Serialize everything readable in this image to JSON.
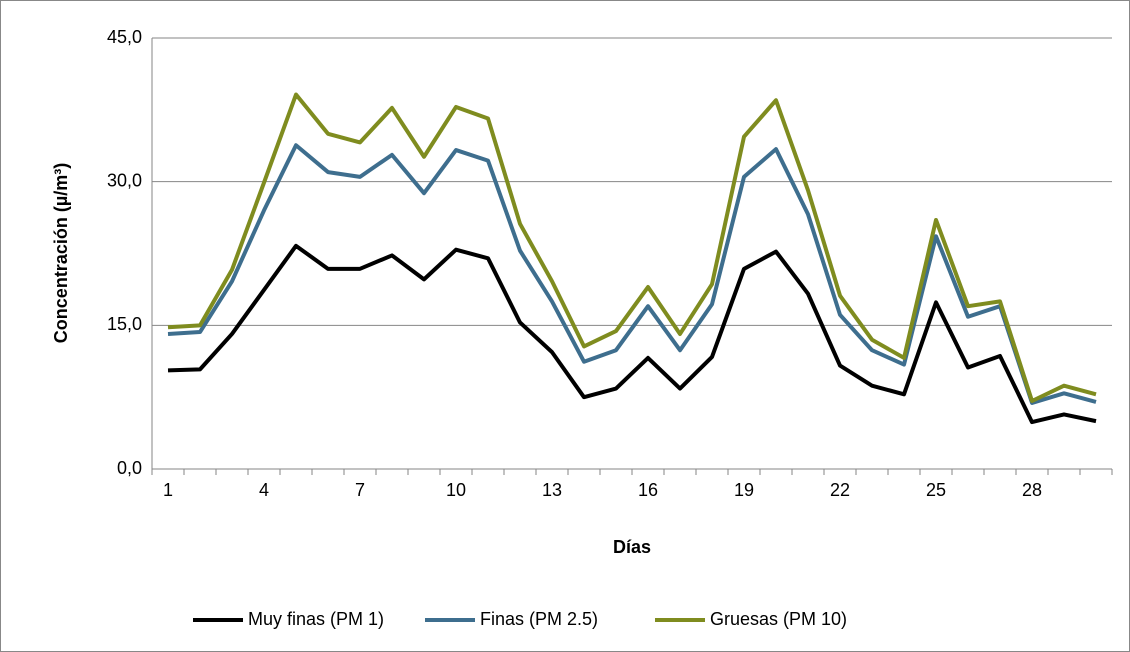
{
  "chart_data": {
    "type": "line",
    "x_label": "Días",
    "y_label": "Concentración (µ/m³)",
    "categories": [
      1,
      null,
      null,
      4,
      null,
      null,
      7,
      null,
      null,
      10,
      null,
      null,
      13,
      null,
      null,
      16,
      null,
      null,
      19,
      null,
      null,
      22,
      null,
      null,
      25,
      null,
      null,
      28,
      null,
      null
    ],
    "series": [
      {
        "name": "Muy finas (PM 1)",
        "color": "#000000",
        "values": [
          10.3,
          10.4,
          14.1,
          18.7,
          23.3,
          20.9,
          20.9,
          22.3,
          19.8,
          22.9,
          22.0,
          15.3,
          12.2,
          7.5,
          8.4,
          11.6,
          8.4,
          11.7,
          20.9,
          22.7,
          18.3,
          10.8,
          8.7,
          7.8,
          17.4,
          10.6,
          11.8,
          4.9,
          5.7,
          5.0
        ]
      },
      {
        "name": "Finas (PM 2.5)",
        "color": "#3e6e8e",
        "values": [
          14.1,
          14.3,
          19.6,
          27.0,
          33.8,
          31.0,
          30.5,
          32.8,
          28.8,
          33.3,
          32.2,
          22.8,
          17.5,
          11.2,
          12.4,
          17.0,
          12.4,
          17.2,
          30.5,
          33.4,
          26.6,
          16.1,
          12.4,
          10.9,
          24.3,
          15.9,
          17.0,
          6.9,
          7.9,
          7.0
        ]
      },
      {
        "name": "Gruesas (PM 10)",
        "color": "#7f8c1f",
        "values": [
          14.8,
          15.0,
          20.8,
          29.9,
          39.1,
          35.0,
          34.1,
          37.7,
          32.6,
          37.8,
          36.6,
          25.6,
          19.6,
          12.8,
          14.4,
          19.0,
          14.1,
          19.3,
          34.7,
          38.5,
          29.1,
          18.1,
          13.5,
          11.6,
          26.0,
          17.0,
          17.5,
          7.1,
          8.7,
          7.8
        ]
      }
    ],
    "ylim": [
      0,
      45
    ],
    "yticks": [
      {
        "value": 0,
        "label": "0,0"
      },
      {
        "value": 15,
        "label": "15,0"
      },
      {
        "value": 30,
        "label": "30,0"
      },
      {
        "value": 45,
        "label": "45,0"
      }
    ],
    "grid": true,
    "legend": "bottom"
  }
}
